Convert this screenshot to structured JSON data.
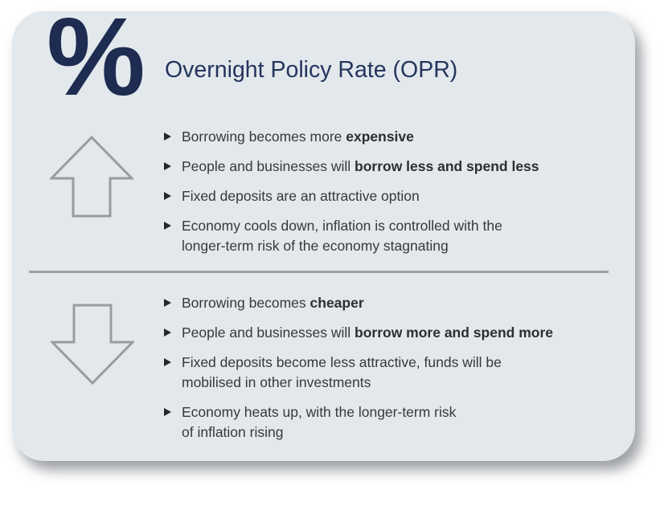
{
  "colors": {
    "page_bg": "#ffffff",
    "card_bg": "#e2e8eb",
    "navy_percent": "#1e2c52",
    "navy_title": "#24355e",
    "body_text": "#383838",
    "arrow_gray": "#989c9f",
    "divider_gray": "#9ba0a4",
    "bullet_marker": "#262626"
  },
  "card": {
    "percent_symbol": "%",
    "title": "Overnight Policy Rate (OPR)",
    "bullet_marker_icon": "triangle-right",
    "sections": [
      {
        "id": "rate-up",
        "arrow_icon": "arrow-up",
        "bullets": [
          {
            "parts": [
              {
                "text": "Borrowing becomes more ",
                "bold": false
              },
              {
                "text": "expensive",
                "bold": true
              }
            ]
          },
          {
            "parts": [
              {
                "text": "People and businesses will ",
                "bold": false
              },
              {
                "text": "borrow less and spend less",
                "bold": true
              }
            ]
          },
          {
            "parts": [
              {
                "text": "Fixed deposits are an attractive option",
                "bold": false
              }
            ]
          },
          {
            "parts": [
              {
                "text": "Economy cools down, inflation is controlled with the\nlonger-term risk of the economy stagnating",
                "bold": false
              }
            ]
          }
        ]
      },
      {
        "id": "rate-down",
        "arrow_icon": "arrow-down",
        "bullets": [
          {
            "parts": [
              {
                "text": "Borrowing becomes ",
                "bold": false
              },
              {
                "text": "cheaper",
                "bold": true
              }
            ]
          },
          {
            "parts": [
              {
                "text": "People and businesses will ",
                "bold": false
              },
              {
                "text": "borrow more and spend more",
                "bold": true
              }
            ]
          },
          {
            "parts": [
              {
                "text": "Fixed deposits become less attractive, funds will be\nmobilised in other investments",
                "bold": false
              }
            ]
          },
          {
            "parts": [
              {
                "text": "Economy heats up, with the longer-term risk\nof inflation rising",
                "bold": false
              }
            ]
          }
        ]
      }
    ]
  }
}
